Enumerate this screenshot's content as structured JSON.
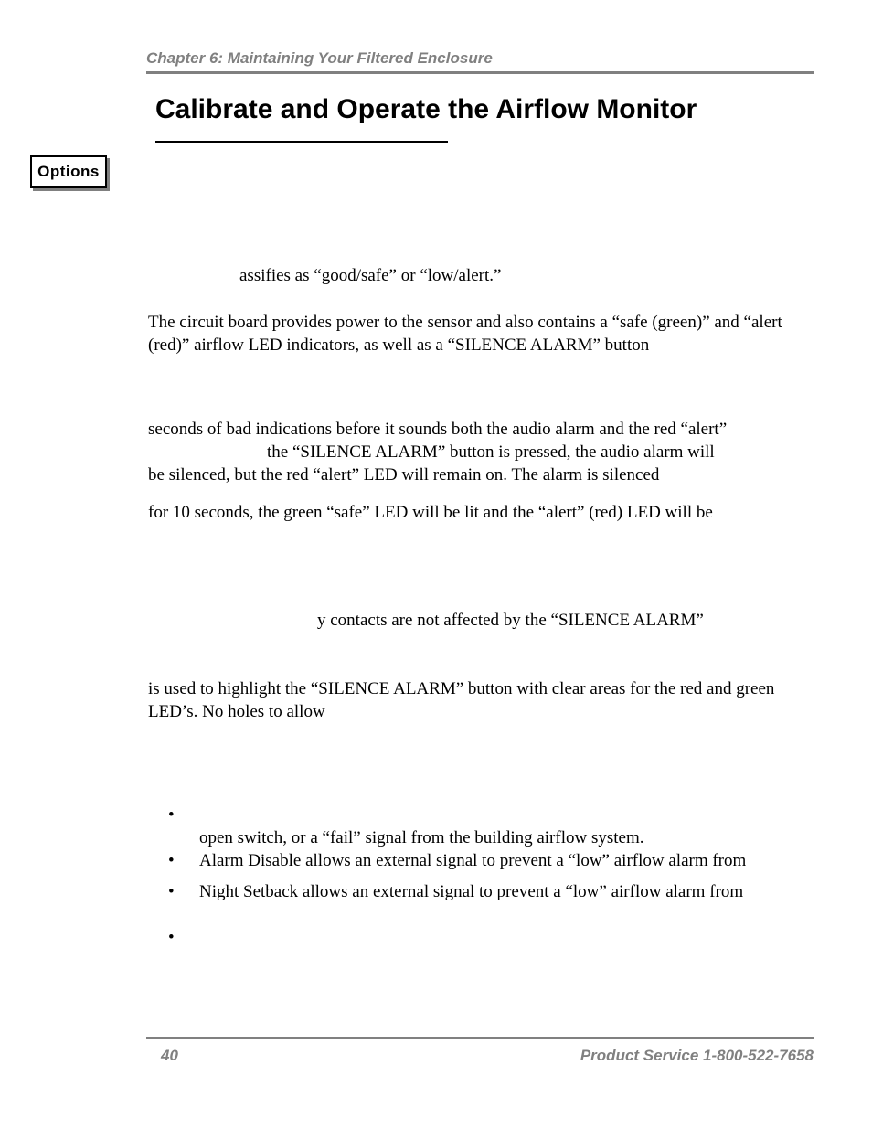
{
  "colors": {
    "header_gray": "#808080",
    "text_black": "#000000",
    "background": "#ffffff"
  },
  "typography": {
    "body_font": "Times New Roman",
    "heading_font": "Arial",
    "body_size_pt": 14,
    "title_size_pt": 22,
    "header_size_pt": 13
  },
  "header": {
    "chapter": "Chapter 6: Maintaining Your Filtered Enclosure"
  },
  "title": "Calibrate and Operate the Airflow Monitor",
  "sidebar": {
    "options_label": "Options"
  },
  "paragraphs": {
    "p1": "assifies as “good/safe” or “low/alert.”",
    "p2": "The circuit board provides power to the sensor and also contains a “safe (green)” and “alert (red)” airflow LED indicators, as well as a “SILENCE ALARM” button",
    "p3_line1": "seconds of bad indications before it sounds both the audio alarm and the red “alert”",
    "p3_line2": "the “SILENCE ALARM” button is pressed, the audio alarm will",
    "p3_line3": "be silenced, but the red “alert” LED will remain on.  The alarm is silenced",
    "p4": "for 10 seconds, the green “safe” LED will be lit and the “alert” (red) LED will be",
    "p5": "y contacts are not affected by the “SILENCE ALARM”",
    "p6": "is used to highlight the “SILENCE ALARM” button with clear areas for the red and green LED’s.  No holes to allow"
  },
  "bullets": {
    "b1": "open switch, or a “fail” signal from the building airflow system.",
    "b2": "Alarm Disable allows an external signal to prevent a “low” airflow alarm from",
    "b3": "Night Setback allows an external signal to prevent a “low” airflow alarm from",
    "b4": ""
  },
  "footer": {
    "page_number": "40",
    "service_text": "Product Service 1-800-522-7658"
  }
}
